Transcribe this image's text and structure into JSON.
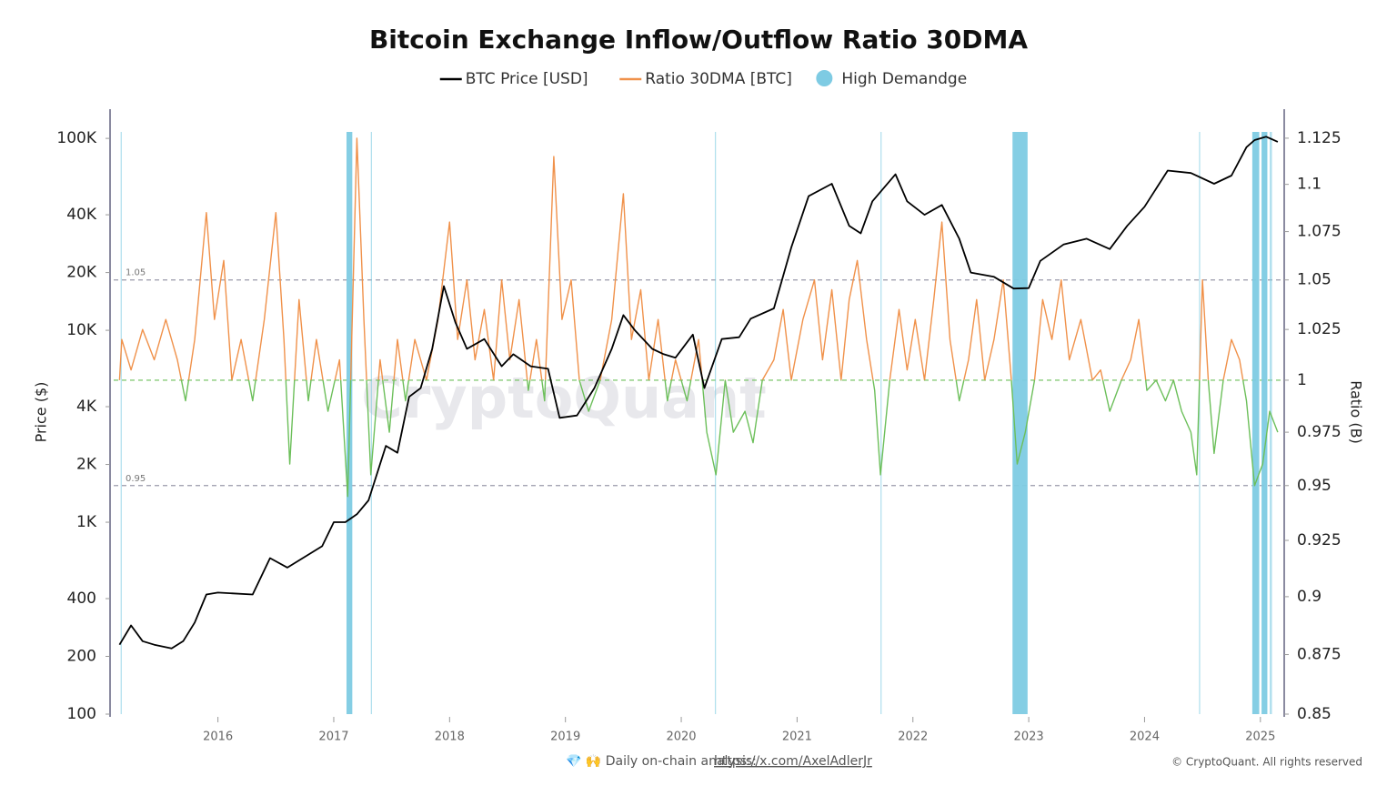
{
  "chart_data": {
    "type": "line",
    "title": "Bitcoin Exchange Inflow/Outflow Ratio 30DMA",
    "y_label": "Price ($)",
    "y2_label": "Ratio (B)",
    "xlim": [
      2015.1,
      2025.19
    ],
    "xticks": [
      2016,
      2017,
      2018,
      2019,
      2020,
      2021,
      2022,
      2023,
      2024,
      2025
    ],
    "ylim": [
      100,
      142000
    ],
    "log_y": true,
    "yticks": [
      100,
      200,
      400,
      {
        "value": 1000,
        "label": "1K"
      },
      {
        "value": 2000,
        "label": "2K"
      },
      {
        "value": 4000,
        "label": "4K"
      },
      {
        "value": 10000,
        "label": "10K"
      },
      {
        "value": 20000,
        "label": "20K"
      },
      {
        "value": 40000,
        "label": "40K"
      },
      {
        "value": 100000,
        "label": "100K"
      }
    ],
    "y2lim": [
      0.85,
      1.141
    ],
    "log_y2": true,
    "y2ticks": [
      0.85,
      0.875,
      0.9,
      0.925,
      0.95,
      0.975,
      1,
      1.025,
      1.05,
      1.075,
      1.1,
      1.125
    ],
    "series": [
      {
        "name": "BTC Price [USD]",
        "color": "#000000",
        "x": [
          2015.15,
          2015.25,
          2015.35,
          2015.45,
          2015.6,
          2015.7,
          2015.8,
          2015.9,
          2016.0,
          2016.3,
          2016.45,
          2016.6,
          2016.9,
          2017.0,
          2017.1,
          2017.2,
          2017.3,
          2017.45,
          2017.55,
          2017.65,
          2017.75,
          2017.85,
          2017.95,
          2018.05,
          2018.15,
          2018.3,
          2018.45,
          2018.55,
          2018.7,
          2018.85,
          2018.95,
          2019.1,
          2019.25,
          2019.4,
          2019.5,
          2019.6,
          2019.75,
          2019.85,
          2019.95,
          2020.1,
          2020.2,
          2020.35,
          2020.5,
          2020.6,
          2020.8,
          2020.95,
          2021.1,
          2021.3,
          2021.45,
          2021.55,
          2021.65,
          2021.85,
          2021.95,
          2022.1,
          2022.25,
          2022.4,
          2022.5,
          2022.7,
          2022.87,
          2023.0,
          2023.1,
          2023.3,
          2023.5,
          2023.7,
          2023.85,
          2024.0,
          2024.2,
          2024.4,
          2024.6,
          2024.75,
          2024.88,
          2024.95,
          2025.05,
          2025.15
        ],
        "values": [
          230,
          290,
          240,
          230,
          220,
          240,
          300,
          420,
          430,
          420,
          650,
          580,
          750,
          1000,
          1000,
          1100,
          1300,
          2500,
          2300,
          4500,
          5000,
          8000,
          17000,
          11000,
          8000,
          9000,
          6500,
          7500,
          6500,
          6300,
          3500,
          3600,
          5000,
          8000,
          12000,
          10000,
          8000,
          7500,
          7200,
          9500,
          5000,
          9000,
          9200,
          11500,
          13000,
          27000,
          50000,
          58000,
          35000,
          32000,
          47000,
          65000,
          47000,
          40000,
          45000,
          30000,
          20000,
          19000,
          16500,
          16600,
          23000,
          28000,
          30000,
          26500,
          35000,
          44000,
          68000,
          66000,
          58000,
          64000,
          90000,
          98000,
          102000,
          96000
        ]
      },
      {
        "name": "Ratio 30DMA [BTC]",
        "color": "#f0914a",
        "below_color": "#6cbf5a",
        "axis": "y2",
        "x": [
          2015.15,
          2015.17,
          2015.25,
          2015.35,
          2015.45,
          2015.55,
          2015.65,
          2015.72,
          2015.8,
          2015.9,
          2015.97,
          2016.05,
          2016.12,
          2016.2,
          2016.3,
          2016.4,
          2016.5,
          2016.57,
          2016.62,
          2016.7,
          2016.78,
          2016.85,
          2016.95,
          2017.05,
          2017.12,
          2017.2,
          2017.26,
          2017.32,
          2017.4,
          2017.48,
          2017.55,
          2017.62,
          2017.7,
          2017.8,
          2017.9,
          2018.0,
          2018.07,
          2018.15,
          2018.22,
          2018.3,
          2018.38,
          2018.45,
          2018.52,
          2018.6,
          2018.68,
          2018.75,
          2018.82,
          2018.9,
          2018.97,
          2019.05,
          2019.12,
          2019.2,
          2019.3,
          2019.4,
          2019.5,
          2019.57,
          2019.65,
          2019.72,
          2019.8,
          2019.88,
          2019.95,
          2020.05,
          2020.15,
          2020.22,
          2020.3,
          2020.38,
          2020.45,
          2020.55,
          2020.62,
          2020.7,
          2020.8,
          2020.88,
          2020.95,
          2021.05,
          2021.15,
          2021.22,
          2021.3,
          2021.38,
          2021.45,
          2021.52,
          2021.6,
          2021.67,
          2021.72,
          2021.8,
          2021.88,
          2021.95,
          2022.02,
          2022.1,
          2022.18,
          2022.25,
          2022.32,
          2022.4,
          2022.48,
          2022.55,
          2022.62,
          2022.7,
          2022.78,
          2022.85,
          2022.9,
          2022.97,
          2023.05,
          2023.12,
          2023.2,
          2023.28,
          2023.35,
          2023.45,
          2023.55,
          2023.62,
          2023.7,
          2023.8,
          2023.88,
          2023.95,
          2024.02,
          2024.1,
          2024.18,
          2024.25,
          2024.32,
          2024.4,
          2024.45,
          2024.5,
          2024.55,
          2024.6,
          2024.68,
          2024.75,
          2024.82,
          2024.88,
          2024.95,
          2025.02,
          2025.08,
          2025.15
        ],
        "values": [
          1.0,
          1.02,
          1.005,
          1.025,
          1.01,
          1.03,
          1.01,
          0.99,
          1.02,
          1.085,
          1.03,
          1.06,
          1.0,
          1.02,
          0.99,
          1.03,
          1.085,
          1.02,
          0.96,
          1.04,
          0.99,
          1.02,
          0.985,
          1.01,
          0.945,
          1.125,
          1.03,
          0.955,
          1.01,
          0.975,
          1.02,
          0.99,
          1.02,
          1.0,
          1.03,
          1.08,
          1.02,
          1.05,
          1.01,
          1.035,
          1.0,
          1.05,
          1.01,
          1.04,
          0.995,
          1.02,
          0.99,
          1.115,
          1.03,
          1.05,
          1.0,
          0.985,
          1.0,
          1.03,
          1.095,
          1.02,
          1.045,
          1.0,
          1.03,
          0.99,
          1.01,
          0.99,
          1.02,
          0.975,
          0.955,
          1.0,
          0.975,
          0.985,
          0.97,
          1.0,
          1.01,
          1.035,
          1.0,
          1.03,
          1.05,
          1.01,
          1.045,
          1.0,
          1.04,
          1.06,
          1.02,
          0.995,
          0.955,
          1.0,
          1.035,
          1.005,
          1.03,
          1.0,
          1.04,
          1.08,
          1.02,
          0.99,
          1.01,
          1.04,
          1.0,
          1.02,
          1.05,
          1.0,
          0.96,
          0.975,
          1.0,
          1.04,
          1.02,
          1.05,
          1.01,
          1.03,
          1.0,
          1.005,
          0.985,
          1.0,
          1.01,
          1.03,
          0.995,
          1.0,
          0.99,
          1.0,
          0.985,
          0.975,
          0.955,
          1.05,
          1.0,
          0.965,
          1.0,
          1.02,
          1.01,
          0.99,
          0.95,
          0.96,
          0.985,
          0.975
        ]
      },
      {
        "name": "High Demandge",
        "color": "#7ecbe3",
        "type": "band",
        "ranges": [
          [
            2015.16,
            2015.17
          ],
          [
            2017.11,
            2017.16
          ],
          [
            2017.32,
            2017.33
          ],
          [
            2020.29,
            2020.3
          ],
          [
            2021.72,
            2021.73
          ],
          [
            2022.86,
            2022.99
          ],
          [
            2024.47,
            2024.48
          ],
          [
            2024.93,
            2024.99
          ],
          [
            2025.01,
            2025.06
          ],
          [
            2025.08,
            2025.1
          ]
        ]
      }
    ],
    "reference_lines": [
      {
        "value": 1.05,
        "label": "1.05",
        "color": "#9a9aaa",
        "axis": "y2"
      },
      {
        "value": 1,
        "color": "#6cbf5a",
        "axis": "y2"
      },
      {
        "value": 0.95,
        "label": "0.95",
        "color": "#9a9aaa",
        "axis": "y2"
      }
    ],
    "watermark": "CryptoQuant",
    "footer": {
      "text": "💎 🙌 Daily on-chain analysis:",
      "link": "https://x.com/AxelAdlerJr",
      "copyright": "© CryptoQuant. All rights reserved"
    }
  }
}
